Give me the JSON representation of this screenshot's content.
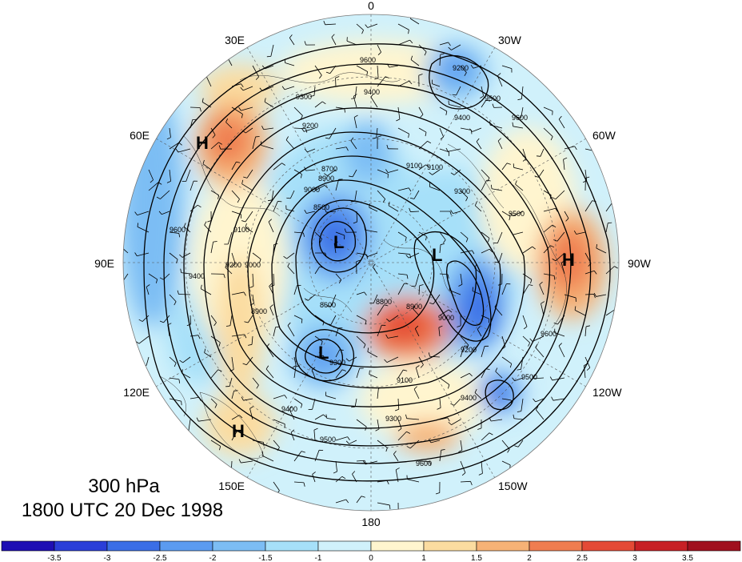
{
  "map": {
    "longitude_labels": [
      "0",
      "30W",
      "60W",
      "90W",
      "120W",
      "150W",
      "180",
      "150E",
      "120E",
      "90E",
      "60E",
      "30E"
    ],
    "pressure_systems": [
      {
        "type": "H"
      },
      {
        "type": "H"
      },
      {
        "type": "H"
      },
      {
        "type": "L"
      },
      {
        "type": "L"
      },
      {
        "type": "L"
      }
    ],
    "contour_labels": [
      "9600",
      "9400",
      "9300",
      "9200",
      "9100",
      "9000",
      "8900",
      "8700",
      "8500",
      "8600",
      "8800",
      "8900",
      "9100",
      "9300",
      "9400",
      "9500",
      "9600",
      "9500",
      "9400",
      "9200",
      "9000",
      "9100",
      "9300",
      "9500",
      "9600",
      "9200",
      "9300",
      "9400",
      "9600",
      "9500",
      "9600",
      "9400",
      "9100",
      "8900",
      "9000",
      "9200"
    ],
    "shading_colors": {
      "neg_strong": "#3a6ee6",
      "neg_mid": "#5b9bf0",
      "neg_light": "#8ec8f5",
      "neg_faint": "#c7ecfa",
      "pos_faint": "#fdf0c8",
      "pos_light": "#f9cc8e",
      "pos_mid": "#f3945e",
      "pos_strong": "#e9543f",
      "pos_max": "#d22a2a"
    }
  },
  "caption": {
    "level": "300 hPa",
    "time": "1800 UTC 20 Dec 1998"
  },
  "colorbar": {
    "tick_labels": [
      "-3.5",
      "-3",
      "-2.5",
      "-2",
      "-1.5",
      "-1",
      "0",
      "1",
      "1.5",
      "2",
      "2.5",
      "3",
      "3.5"
    ],
    "colors": [
      "#1e0fb4",
      "#2a3ed8",
      "#3a6ee6",
      "#5b9bf0",
      "#7cbdf4",
      "#a6e0f9",
      "#d0f1fb",
      "#fff5cf",
      "#fbdca0",
      "#f6b276",
      "#ef7d50",
      "#e44a36",
      "#c72025",
      "#a0101e"
    ]
  }
}
